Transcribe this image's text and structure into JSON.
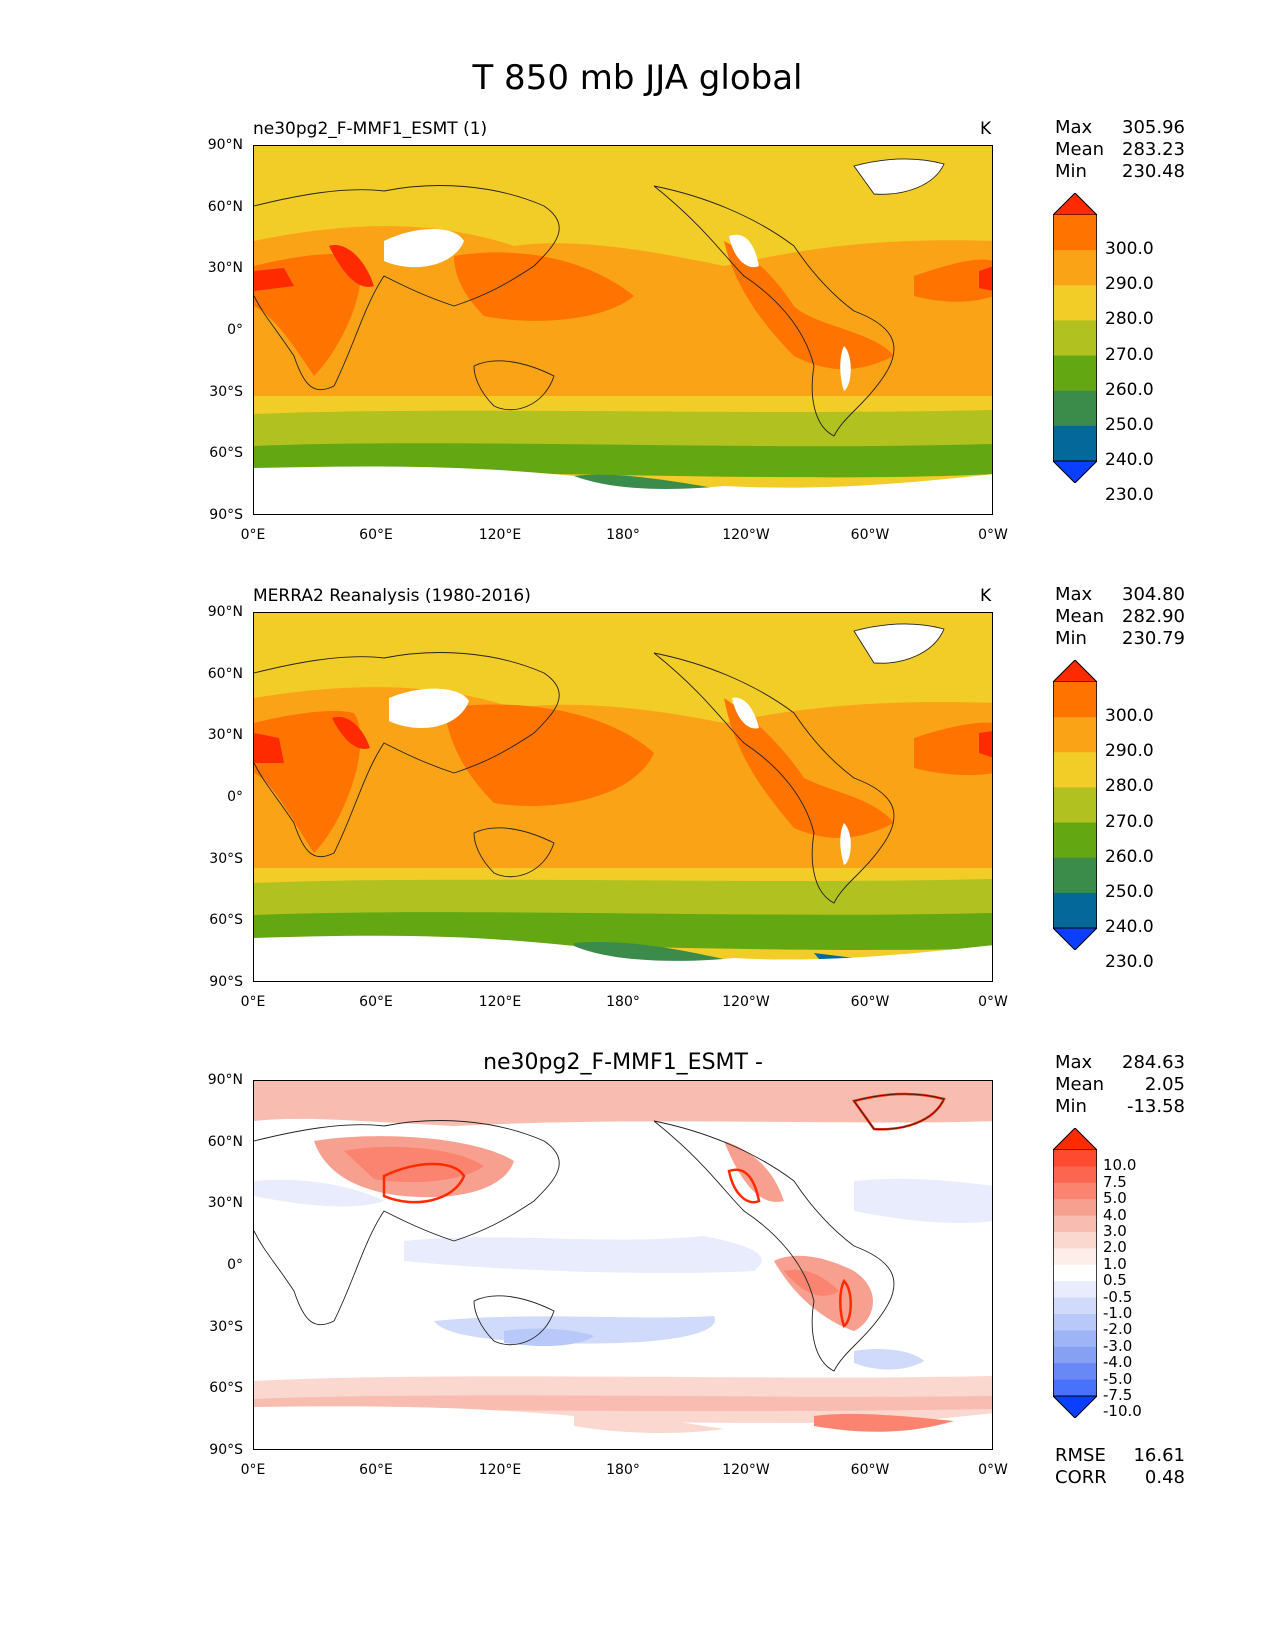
{
  "title": "T 850 mb JJA global",
  "axes": {
    "lat_ticks": [
      "90°N",
      "60°N",
      "30°N",
      "0°",
      "30°S",
      "60°S",
      "90°S"
    ],
    "lon_ticks": [
      "0°E",
      "60°E",
      "120°E",
      "180°",
      "120°W",
      "60°W",
      "0°W"
    ]
  },
  "panels": [
    {
      "title": "ne30pg2_F-MMF1_ESMT (1)",
      "units": "K",
      "stats": {
        "max_label": "Max",
        "max": "305.96",
        "mean_label": "Mean",
        "mean": "283.23",
        "min_label": "Min",
        "min": "230.48"
      },
      "colorbar": {
        "labels": [
          "300.0",
          "290.0",
          "280.0",
          "270.0",
          "260.0",
          "250.0",
          "240.0",
          "230.0"
        ],
        "colors": [
          "#ff2a00",
          "#ff7300",
          "#fba317",
          "#f2cc27",
          "#b1c11f",
          "#63a812",
          "#3b8b4b",
          "#04699a",
          "#0a3fff"
        ]
      }
    },
    {
      "title": "MERRA2 Reanalysis (1980-2016)",
      "units": "K",
      "stats": {
        "max_label": "Max",
        "max": "304.80",
        "mean_label": "Mean",
        "mean": "282.90",
        "min_label": "Min",
        "min": "230.79"
      },
      "colorbar": {
        "labels": [
          "300.0",
          "290.0",
          "280.0",
          "270.0",
          "260.0",
          "250.0",
          "240.0",
          "230.0"
        ],
        "colors": [
          "#ff2a00",
          "#ff7300",
          "#fba317",
          "#f2cc27",
          "#b1c11f",
          "#63a812",
          "#3b8b4b",
          "#04699a",
          "#0a3fff"
        ]
      }
    },
    {
      "title": "ne30pg2_F-MMF1_ESMT -",
      "units": "",
      "stats": {
        "max_label": "Max",
        "max": "284.63",
        "mean_label": "Mean",
        "mean": "2.05",
        "min_label": "Min",
        "min": "-13.58"
      },
      "colorbar": {
        "labels": [
          "10.0",
          "7.5",
          "5.0",
          "4.0",
          "3.0",
          "2.0",
          "1.0",
          "0.5",
          "-0.5",
          "-1.0",
          "-2.0",
          "-3.0",
          "-4.0",
          "-5.0",
          "-7.5",
          "-10.0"
        ],
        "colors": [
          "#ff2a00",
          "#fe4a30",
          "#fc6650",
          "#fa8470",
          "#f8a090",
          "#f9bcb0",
          "#fad8d0",
          "#fdeeea",
          "#ffffff",
          "#e8ecfc",
          "#d0dafa",
          "#b8c8f8",
          "#9fb4f6",
          "#86a0f4",
          "#6888f6",
          "#4872fa",
          "#0a3fff"
        ]
      },
      "metrics": {
        "rmse_label": "RMSE",
        "rmse": "16.61",
        "corr_label": "CORR",
        "corr": "0.48"
      }
    }
  ]
}
